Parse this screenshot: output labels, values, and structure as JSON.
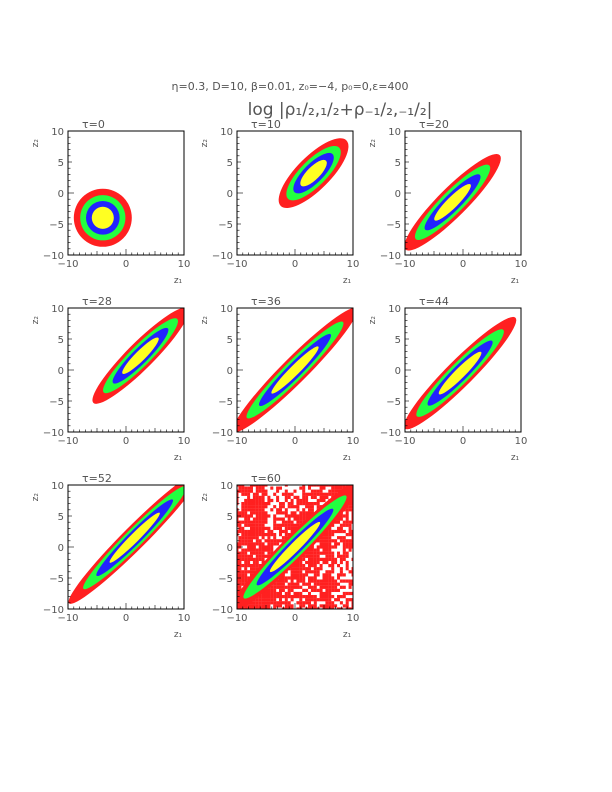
{
  "header": {
    "params": "η=0.3, D=10, β=0.01, z₀=−4, p₀=0,ε=400",
    "quantity": "log |ρ₁/₂,₁/₂+ρ₋₁/₂,₋₁/₂|"
  },
  "chart_data": [
    {
      "type": "contour",
      "title": "τ=0",
      "xlabel": "z₁",
      "ylabel": "z₂",
      "xlim": [
        -10,
        10
      ],
      "ylim": [
        -10,
        10
      ],
      "xticks": [
        "−10",
        "0",
        "10"
      ],
      "yticks": [
        "−10",
        "−5",
        "0",
        "5",
        "10"
      ],
      "center": [
        -4,
        -4
      ],
      "orientation_deg": 45,
      "semi_major": 5,
      "semi_minor": 5,
      "levels": [
        "red",
        "green",
        "blue",
        "yellow"
      ],
      "noise": false
    },
    {
      "type": "contour",
      "title": "τ=10",
      "xlabel": "z₁",
      "ylabel": "z₂",
      "xlim": [
        -10,
        10
      ],
      "ylim": [
        -10,
        10
      ],
      "xticks": [
        "−10",
        "0",
        "10"
      ],
      "yticks": [
        "−10",
        "−5",
        "0",
        "5",
        "10"
      ],
      "center": [
        3.2,
        3.2
      ],
      "orientation_deg": 45,
      "semi_major": 8,
      "semi_minor": 2.9,
      "levels": [
        "red",
        "green",
        "blue",
        "yellow"
      ],
      "noise": false
    },
    {
      "type": "contour",
      "title": "τ=20",
      "xlabel": "z₁",
      "ylabel": "z₂",
      "xlim": [
        -10,
        10
      ],
      "ylim": [
        -10,
        10
      ],
      "xticks": [
        "−10",
        "0",
        "10"
      ],
      "yticks": [
        "−10",
        "−5",
        "0",
        "5",
        "10"
      ],
      "center": [
        -1.8,
        -1.5
      ],
      "orientation_deg": 45,
      "semi_major": 11.5,
      "semi_minor": 2.5,
      "levels": [
        "red",
        "green",
        "blue",
        "yellow"
      ],
      "noise": false
    },
    {
      "type": "contour",
      "title": "τ=28",
      "xlabel": "z₁",
      "ylabel": "z₂",
      "xlim": [
        -10,
        10
      ],
      "ylim": [
        -10,
        10
      ],
      "xticks": [
        "−10",
        "0",
        "10"
      ],
      "yticks": [
        "−10",
        "−5",
        "0",
        "5",
        "10"
      ],
      "center": [
        2.5,
        2.3
      ],
      "orientation_deg": 45,
      "semi_major": 11.5,
      "semi_minor": 2.3,
      "levels": [
        "red",
        "green",
        "blue",
        "yellow"
      ],
      "noise": false
    },
    {
      "type": "contour",
      "title": "τ=36",
      "xlabel": "z₁",
      "ylabel": "z₂",
      "xlim": [
        -10,
        10
      ],
      "ylim": [
        -10,
        10
      ],
      "xticks": [
        "−10",
        "0",
        "10"
      ],
      "yticks": [
        "−10",
        "−5",
        "0",
        "5",
        "10"
      ],
      "center": [
        0,
        0
      ],
      "orientation_deg": 45,
      "semi_major": 15,
      "semi_minor": 2.2,
      "levels": [
        "red",
        "green",
        "blue",
        "yellow"
      ],
      "noise": false
    },
    {
      "type": "contour",
      "title": "τ=44",
      "xlabel": "z₁",
      "ylabel": "z₂",
      "xlim": [
        -10,
        10
      ],
      "ylim": [
        -10,
        10
      ],
      "xticks": [
        "−10",
        "0",
        "10"
      ],
      "yticks": [
        "−10",
        "−5",
        "0",
        "5",
        "10"
      ],
      "center": [
        -0.5,
        -0.5
      ],
      "orientation_deg": 45,
      "semi_major": 13.5,
      "semi_minor": 2.3,
      "levels": [
        "red",
        "green",
        "blue",
        "yellow"
      ],
      "noise": false
    },
    {
      "type": "contour",
      "title": "τ=52",
      "xlabel": "z₁",
      "ylabel": "z₂",
      "xlim": [
        -10,
        10
      ],
      "ylim": [
        -10,
        10
      ],
      "xticks": [
        "−10",
        "0",
        "10"
      ],
      "yticks": [
        "−10",
        "−5",
        "0",
        "5",
        "10"
      ],
      "center": [
        1.5,
        1.5
      ],
      "orientation_deg": 45,
      "semi_major": 16,
      "semi_minor": 2.0,
      "levels": [
        "red",
        "green",
        "blue",
        "yellow"
      ],
      "noise": false
    },
    {
      "type": "contour",
      "title": "τ=60",
      "xlabel": "z₁",
      "ylabel": "z₂",
      "xlim": [
        -10,
        10
      ],
      "ylim": [
        -10,
        10
      ],
      "xticks": [
        "−10",
        "0",
        "10"
      ],
      "yticks": [
        "−10",
        "−5",
        "0",
        "5",
        "10"
      ],
      "center": [
        0,
        0
      ],
      "orientation_deg": 45,
      "semi_major": 16,
      "semi_minor": 2.1,
      "levels": [
        "red",
        "green",
        "blue",
        "yellow"
      ],
      "noise": true
    }
  ],
  "colors": {
    "red": "#ff2020",
    "green": "#22ff40",
    "blue": "#2222ff",
    "yellow": "#ffff22",
    "text": "#555555",
    "frame": "#000000"
  }
}
